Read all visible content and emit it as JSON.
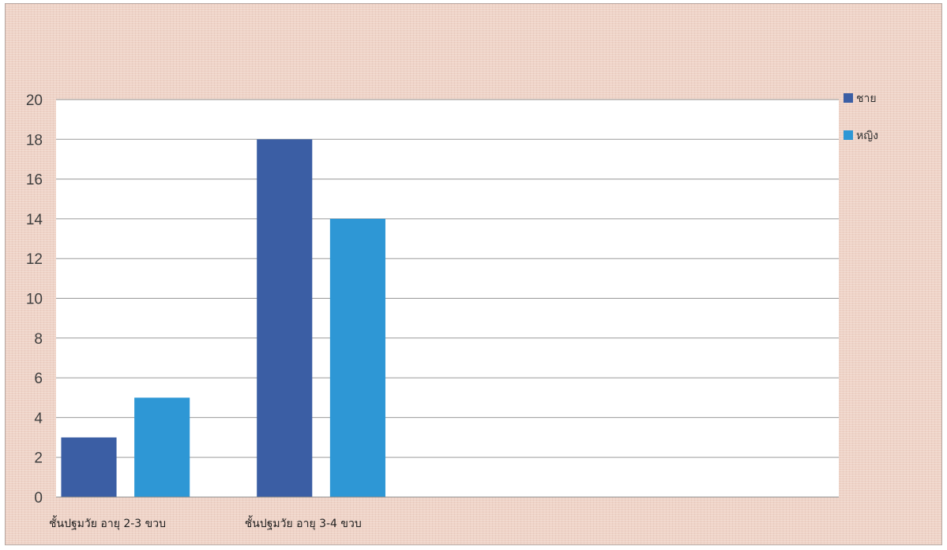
{
  "chart_data": {
    "type": "bar",
    "title": "",
    "xlabel": "",
    "ylabel": "",
    "categories": [
      "ชั้นปฐมวัย  อายุ 2-3 ขวบ",
      "ชั้นปฐมวัย  อายุ 3-4 ขวบ",
      "",
      ""
    ],
    "series": [
      {
        "name": "ชาย",
        "values": [
          3,
          18,
          null,
          null
        ],
        "color": "#3b5ea4"
      },
      {
        "name": "หญิง",
        "values": [
          5,
          14,
          null,
          null
        ],
        "color": "#2e97d5"
      }
    ],
    "ylim": [
      0,
      20
    ],
    "yticks": [
      0,
      2,
      4,
      6,
      8,
      10,
      12,
      14,
      16,
      18,
      20
    ],
    "grid": true,
    "legend_position": "right",
    "background_color": "#efd3c7",
    "plot_background": "#ffffff"
  }
}
